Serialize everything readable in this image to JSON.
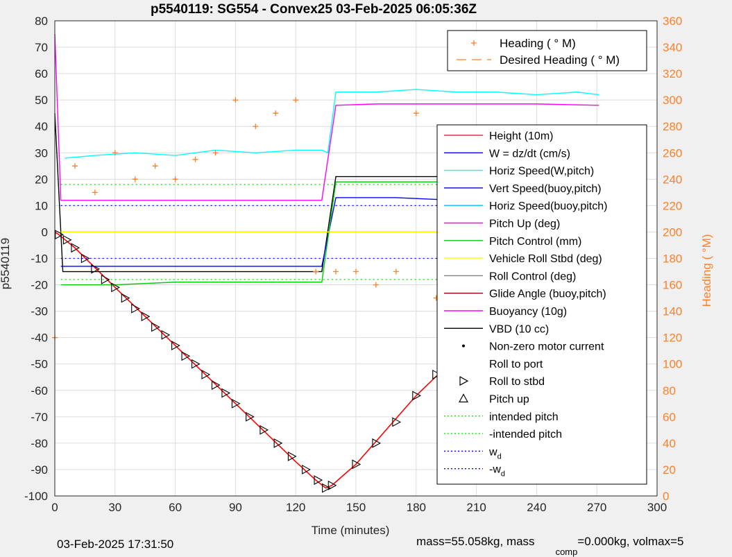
{
  "chart_data": {
    "type": "line",
    "title": "p5540119: SG554 - Convex25 03-Feb-2025 06:05:36Z",
    "xlabel": "Time (minutes)",
    "ylabel": "p5540119",
    "y2label": "Heading (  °M)",
    "xlim": [
      0,
      300
    ],
    "ylim": [
      -100,
      80
    ],
    "y2lim": [
      0,
      360
    ],
    "xticks": [
      0,
      30,
      60,
      90,
      120,
      150,
      180,
      210,
      240,
      270,
      300
    ],
    "yticks": [
      -100,
      -90,
      -80,
      -70,
      -60,
      -50,
      -40,
      -30,
      -20,
      -10,
      0,
      10,
      20,
      30,
      40,
      50,
      60,
      70,
      80
    ],
    "y2ticks": [
      0,
      20,
      40,
      60,
      80,
      100,
      120,
      140,
      160,
      180,
      200,
      220,
      240,
      260,
      280,
      300,
      320,
      340,
      360
    ],
    "grid": true,
    "colors": {
      "depth": "#ff0000",
      "heading": "#ff7f27",
      "height": "#e0334c",
      "w": "#0000ff",
      "horiz_w": "#00ffff",
      "vert_buoy": "#0000cc",
      "horiz_buoy": "#00bfff",
      "pitch_up": "#ff00ff",
      "pitch_control": "#00cc00",
      "roll_stbd": "#ffff00",
      "roll_control": "#808080",
      "glide": "#8b0000",
      "buoyancy": "#ff00ff",
      "vbd": "#000000",
      "intended": "#00ee00",
      "wd": "#0000ff"
    },
    "legend_top": {
      "placement": "top-right",
      "entries": [
        {
          "label": "Heading (  ° M)",
          "style": "plus"
        },
        {
          "label": "Desired Heading (  ° M)",
          "style": "dash"
        }
      ]
    },
    "legend_main": {
      "placement": "right",
      "entries": [
        {
          "label": "Height (10m)",
          "style": "line",
          "color": "#e0334c"
        },
        {
          "label": "W = dz/dt (cm/s)",
          "style": "line",
          "color": "#0000ff"
        },
        {
          "label": "Horiz Speed(W,pitch)",
          "style": "line",
          "color": "#00ffff"
        },
        {
          "label": "Vert Speed(buoy,pitch)",
          "style": "line",
          "color": "#0000cc"
        },
        {
          "label": "Horiz Speed(buoy,pitch)",
          "style": "line",
          "color": "#00bfff"
        },
        {
          "label": "Pitch Up (deg)",
          "style": "line",
          "color": "#ff00ff"
        },
        {
          "label": "Pitch Control (mm)",
          "style": "line",
          "color": "#00cc00"
        },
        {
          "label": "Vehicle Roll Stbd (deg)",
          "style": "line",
          "color": "#ffff00"
        },
        {
          "label": "Roll Control (deg)",
          "style": "line",
          "color": "#808080"
        },
        {
          "label": "Glide Angle (buoy,pitch)",
          "style": "line",
          "color": "#8b0000"
        },
        {
          "label": "Buoyancy (10g)",
          "style": "line",
          "color": "#ff00ff"
        },
        {
          "label": "VBD (10 cc)",
          "style": "line",
          "color": "#000000"
        },
        {
          "label": "Non-zero motor current",
          "style": "dot"
        },
        {
          "label": "Roll to port",
          "style": "left-tri"
        },
        {
          "label": "Roll to stbd",
          "style": "right-tri"
        },
        {
          "label": "Pitch up",
          "style": "up-tri"
        },
        {
          "label": "intended pitch",
          "style": "dotted",
          "color": "#00ee00"
        },
        {
          "label": "-intended pitch",
          "style": "dotted",
          "color": "#00ee00"
        },
        {
          "label": "w",
          "sub": "d",
          "style": "dotted",
          "color": "#0000ff"
        },
        {
          "label": "-w",
          "sub": "d",
          "style": "dotted",
          "color": "#0000ff"
        }
      ]
    },
    "series": [
      {
        "key": "depth",
        "x": [
          0,
          2,
          10,
          30,
          60,
          90,
          120,
          130,
          135,
          138,
          150,
          180,
          210,
          240,
          270
        ],
        "y": [
          0,
          -1,
          -6,
          -21,
          -43,
          -65,
          -87,
          -94,
          -97,
          -96,
          -88,
          -62,
          -40,
          -19,
          0
        ]
      },
      {
        "key": "horiz_w",
        "x": [
          5,
          20,
          40,
          60,
          80,
          100,
          120,
          133,
          136,
          140,
          160,
          180,
          200,
          220,
          240,
          260,
          271
        ],
        "y": [
          28,
          29,
          30,
          29,
          31,
          30,
          31,
          31,
          30,
          53,
          53,
          54,
          53,
          53,
          52,
          53,
          52
        ]
      },
      {
        "key": "buoyancy",
        "x": [
          0,
          3,
          133,
          140,
          160,
          200,
          240,
          271
        ],
        "y": [
          75,
          12,
          12,
          48,
          48.5,
          48.5,
          48.5,
          48
        ]
      },
      {
        "key": "vbd",
        "x": [
          0,
          4,
          133,
          140,
          200,
          271
        ],
        "y": [
          45,
          -15,
          -15,
          21,
          21,
          21
        ]
      },
      {
        "key": "w",
        "x": [
          3,
          30,
          60,
          90,
          120,
          133,
          140,
          170,
          200,
          240,
          271
        ],
        "y": [
          -13,
          -13,
          -13,
          -13,
          -13,
          -13,
          13,
          13,
          12,
          12,
          12
        ]
      },
      {
        "key": "pitch_control",
        "x": [
          3,
          30,
          60,
          90,
          120,
          133,
          140,
          170,
          200,
          240,
          271
        ],
        "y": [
          -20,
          -20,
          -19,
          -19,
          -19,
          -19,
          19,
          19,
          19,
          19,
          19
        ]
      },
      {
        "key": "pitch_up",
        "x": [
          3,
          135,
          271
        ],
        "y": [
          0,
          0,
          0
        ]
      },
      {
        "key": "roll_stbd",
        "x": [
          3,
          270
        ],
        "y": [
          0,
          0
        ]
      }
    ],
    "reference_lines": [
      {
        "key": "intended",
        "y": 18
      },
      {
        "key": "intended",
        "y": -18
      },
      {
        "key": "wd",
        "y": 10
      },
      {
        "key": "wd",
        "y": -10
      }
    ],
    "heading": {
      "x": [
        0,
        10,
        20,
        30,
        40,
        50,
        60,
        70,
        80,
        90,
        100,
        110,
        120,
        130,
        140,
        150,
        160,
        170,
        180,
        190,
        200,
        210,
        220,
        230,
        240,
        250,
        260,
        270
      ],
      "y": [
        120,
        250,
        230,
        260,
        240,
        250,
        240,
        255,
        260,
        300,
        280,
        290,
        300,
        170,
        170,
        170,
        160,
        170,
        290,
        150,
        180,
        190,
        180,
        170,
        200,
        190,
        180,
        140
      ]
    },
    "markers": {
      "x": [
        2,
        6,
        10,
        15,
        20,
        25,
        30,
        35,
        40,
        45,
        50,
        55,
        60,
        65,
        70,
        75,
        80,
        85,
        90,
        97,
        104,
        111,
        118,
        125,
        131,
        135,
        138,
        150,
        160,
        170,
        180,
        190,
        200,
        210,
        220,
        230,
        240,
        250,
        260,
        268,
        271
      ],
      "y": [
        -1,
        -3,
        -6,
        -10,
        -14,
        -18,
        -21,
        -25,
        -29,
        -32,
        -36,
        -39,
        -43,
        -47,
        -50,
        -54,
        -58,
        -61,
        -65,
        -70,
        -75,
        -80,
        -85,
        -90,
        -94,
        -97,
        -96,
        -88,
        -80,
        -72,
        -62,
        -54,
        -47,
        -40,
        -33,
        -26,
        -19,
        -13,
        -6,
        -1,
        0
      ]
    },
    "footer": {
      "timestamp": "03-Feb-2025 17:31:50",
      "mass_text": "mass=55.058kg, mass",
      "comp_sub": "comp",
      "comp_text": "=0.000kg, volmax=5"
    }
  }
}
